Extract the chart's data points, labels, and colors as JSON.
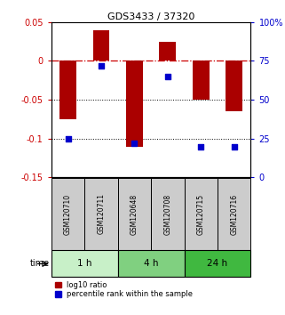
{
  "title": "GDS3433 / 37320",
  "samples": [
    "GSM120710",
    "GSM120711",
    "GSM120648",
    "GSM120708",
    "GSM120715",
    "GSM120716"
  ],
  "log10_ratio": [
    -0.075,
    0.04,
    -0.11,
    0.025,
    -0.05,
    -0.065
  ],
  "percentile_rank": [
    25,
    72,
    22,
    65,
    20,
    20
  ],
  "time_groups": [
    {
      "label": "1 h",
      "start": 0,
      "end": 2,
      "color": "#c8f0c8"
    },
    {
      "label": "4 h",
      "start": 2,
      "end": 4,
      "color": "#80d080"
    },
    {
      "label": "24 h",
      "start": 4,
      "end": 6,
      "color": "#40b840"
    }
  ],
  "ylim_left": [
    -0.15,
    0.05
  ],
  "ylim_right": [
    0,
    100
  ],
  "yticks_left": [
    0.05,
    0,
    -0.05,
    -0.1,
    -0.15
  ],
  "yticks_left_labels": [
    "0.05",
    "0",
    "-0.05",
    "-0.1",
    "-0.15"
  ],
  "yticks_right": [
    100,
    75,
    50,
    25,
    0
  ],
  "yticks_right_labels": [
    "100%",
    "75",
    "50",
    "25",
    "0"
  ],
  "bar_color": "#aa0000",
  "dot_color": "#0000cc",
  "hline_color": "#cc0000",
  "bar_width": 0.5,
  "dot_size": 18,
  "legend_bar": "log10 ratio",
  "legend_dot": "percentile rank within the sample",
  "sample_box_color": "#cccccc",
  "title_fontsize": 8,
  "tick_fontsize": 7
}
